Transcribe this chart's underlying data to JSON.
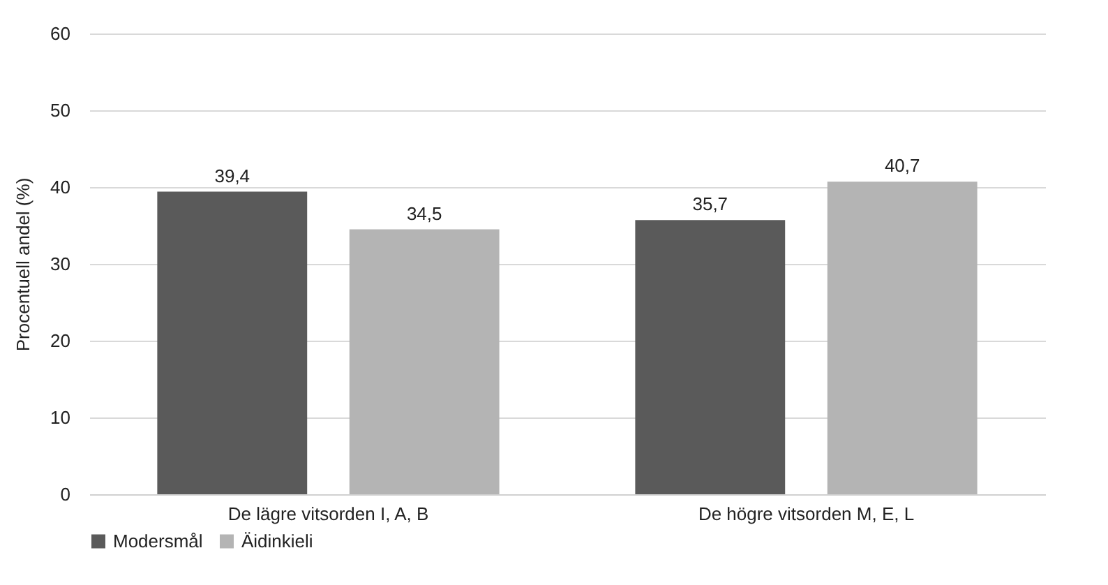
{
  "chart_data": {
    "type": "bar",
    "ylabel": "Procentuell andel (%)",
    "categories": [
      "De lägre vitsorden I, A, B",
      "De högre vitsorden M, E, L"
    ],
    "series": [
      {
        "name": "Modersmål",
        "color": "#5a5a5a",
        "values": [
          39.4,
          35.7
        ],
        "value_labels": [
          "39,4",
          "35,7"
        ]
      },
      {
        "name": "Äidinkieli",
        "color": "#b4b4b4",
        "values": [
          34.5,
          40.7
        ],
        "value_labels": [
          "34,5",
          "40,7"
        ]
      }
    ],
    "ylim": [
      0,
      60
    ],
    "yticks": [
      0,
      10,
      20,
      30,
      40,
      50,
      60
    ],
    "grid": "y",
    "legend": "bottom"
  }
}
